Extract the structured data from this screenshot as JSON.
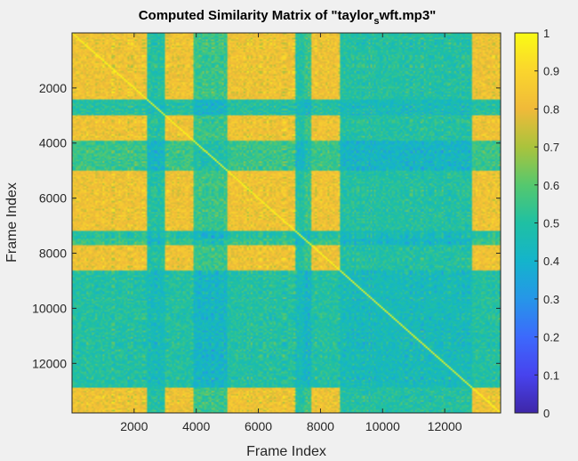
{
  "chart_data": {
    "type": "heatmap",
    "title": {
      "main": "Computed Similarity Matrix of \"taylor",
      "subscript": "s",
      "tail": "wft.mp3\""
    },
    "xlabel": "Frame Index",
    "ylabel": "Frame Index",
    "xlim": [
      1,
      13800
    ],
    "ylim": [
      1,
      13800
    ],
    "xticks": [
      2000,
      4000,
      6000,
      8000,
      10000,
      12000
    ],
    "yticks": [
      2000,
      4000,
      6000,
      8000,
      10000,
      12000
    ],
    "xtick_labels": [
      "2000",
      "4000",
      "6000",
      "8000",
      "10000",
      "12000"
    ],
    "ytick_labels": [
      "2000",
      "4000",
      "6000",
      "8000",
      "10000",
      "12000"
    ],
    "y_reversed": true,
    "colormap": "parula",
    "colorbar": {
      "range": [
        0,
        1
      ],
      "ticks": [
        0,
        0.1,
        0.2,
        0.3,
        0.4,
        0.5,
        0.6,
        0.7,
        0.8,
        0.9,
        1
      ],
      "tick_labels": [
        "0",
        "0.1",
        "0.2",
        "0.3",
        "0.4",
        "0.5",
        "0.6",
        "0.7",
        "0.8",
        "0.9",
        "1"
      ]
    },
    "segments": [
      {
        "start": 1,
        "end": 2400,
        "group": "A"
      },
      {
        "start": 2400,
        "end": 3000,
        "group": "B"
      },
      {
        "start": 3000,
        "end": 3900,
        "group": "A"
      },
      {
        "start": 3900,
        "end": 5000,
        "group": "C"
      },
      {
        "start": 5000,
        "end": 7200,
        "group": "A"
      },
      {
        "start": 7200,
        "end": 7500,
        "group": "B"
      },
      {
        "start": 7500,
        "end": 7700,
        "group": "C"
      },
      {
        "start": 7700,
        "end": 8600,
        "group": "A"
      },
      {
        "start": 8600,
        "end": 12900,
        "group": "B"
      },
      {
        "start": 12900,
        "end": 13800,
        "group": "A"
      }
    ],
    "group_similarity": {
      "A-A": 0.82,
      "A-B": 0.5,
      "A-C": 0.55,
      "B-B": 0.45,
      "B-C": 0.42,
      "C-C": 0.48
    },
    "grid": false
  }
}
